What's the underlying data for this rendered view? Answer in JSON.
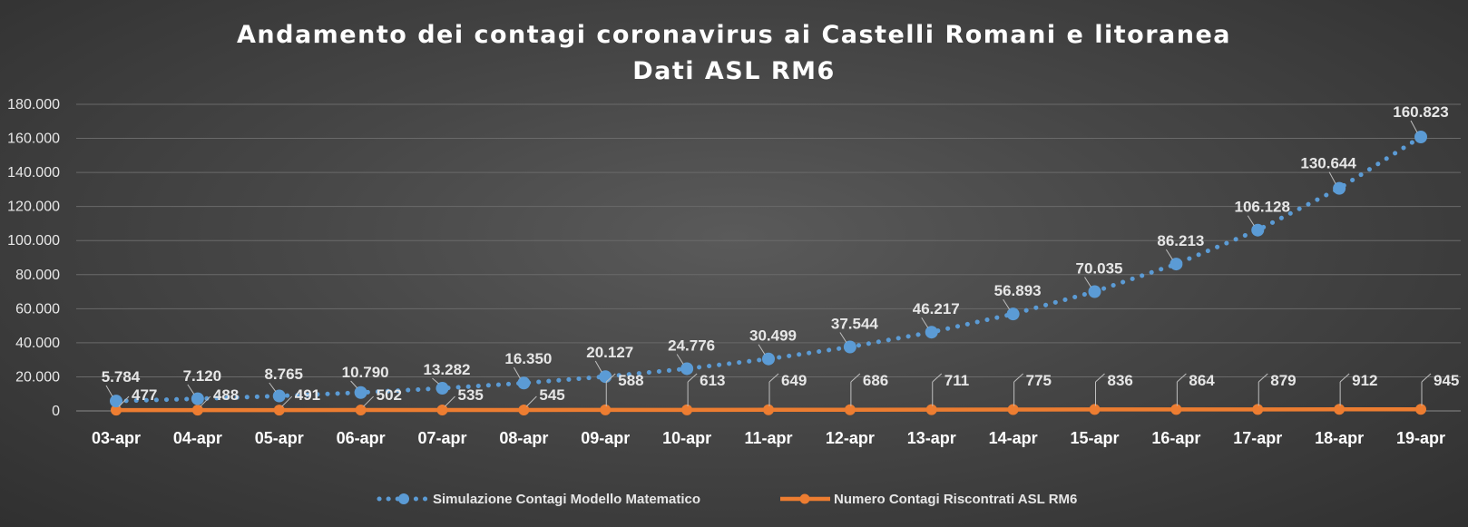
{
  "chart_data": {
    "type": "line",
    "title": "Andamento dei contagi coronavirus ai Castelli Romani e litoranea",
    "subtitle": "Dati ASL RM6",
    "categories": [
      "03-apr",
      "04-apr",
      "05-apr",
      "06-apr",
      "07-apr",
      "08-apr",
      "09-apr",
      "10-apr",
      "11-apr",
      "12-apr",
      "13-apr",
      "14-apr",
      "15-apr",
      "16-apr",
      "17-apr",
      "18-apr",
      "19-apr"
    ],
    "ylim": [
      0,
      180000
    ],
    "yticks": [
      0,
      20000,
      40000,
      60000,
      80000,
      100000,
      120000,
      140000,
      160000,
      180000
    ],
    "ytick_labels": [
      "0",
      "20.000",
      "40.000",
      "60.000",
      "80.000",
      "100.000",
      "120.000",
      "140.000",
      "160.000",
      "180.000"
    ],
    "grid": true,
    "legend_position": "bottom",
    "series": [
      {
        "name": "Simulazione Contagi Modello Matematico",
        "color": "#5b9bd5",
        "style": "dotted-markers",
        "values": [
          5784,
          7120,
          8765,
          10790,
          13282,
          16350,
          20127,
          24776,
          30499,
          37544,
          46217,
          56893,
          70035,
          86213,
          106128,
          130644,
          160823
        ],
        "labels": [
          "5.784",
          "7.120",
          "8.765",
          "10.790",
          "13.282",
          "16.350",
          "20.127",
          "24.776",
          "30.499",
          "37.544",
          "46.217",
          "56.893",
          "70.035",
          "86.213",
          "106.128",
          "130.644",
          "160.823"
        ]
      },
      {
        "name": "Numero Contagi Riscontrati ASL RM6",
        "color": "#ed7d31",
        "style": "solid-markers",
        "values": [
          477,
          488,
          491,
          502,
          535,
          545,
          588,
          613,
          649,
          686,
          711,
          775,
          836,
          864,
          879,
          912,
          945
        ],
        "labels": [
          "477",
          "488",
          "491",
          "502",
          "535",
          "545",
          "588",
          "613",
          "649",
          "686",
          "711",
          "775",
          "836",
          "864",
          "879",
          "912",
          "945"
        ]
      }
    ]
  }
}
